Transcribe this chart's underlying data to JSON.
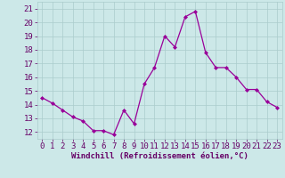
{
  "x": [
    0,
    1,
    2,
    3,
    4,
    5,
    6,
    7,
    8,
    9,
    10,
    11,
    12,
    13,
    14,
    15,
    16,
    17,
    18,
    19,
    20,
    21,
    22,
    23
  ],
  "y": [
    14.5,
    14.1,
    13.6,
    13.1,
    12.8,
    12.1,
    12.1,
    11.8,
    13.6,
    12.6,
    15.5,
    16.7,
    19.0,
    18.2,
    20.4,
    20.8,
    17.8,
    16.7,
    16.7,
    16.0,
    15.1,
    15.1,
    14.2,
    13.8
  ],
  "line_color": "#990099",
  "marker": "D",
  "marker_size": 2.0,
  "bg_color": "#cce8e8",
  "grid_color": "#aacccc",
  "xlabel": "Windchill (Refroidissement éolien,°C)",
  "xlabel_color": "#660066",
  "tick_color": "#660066",
  "ylim": [
    11.5,
    21.5
  ],
  "yticks": [
    12,
    13,
    14,
    15,
    16,
    17,
    18,
    19,
    20,
    21
  ],
  "xlim": [
    -0.5,
    23.5
  ],
  "xticks": [
    0,
    1,
    2,
    3,
    4,
    5,
    6,
    7,
    8,
    9,
    10,
    11,
    12,
    13,
    14,
    15,
    16,
    17,
    18,
    19,
    20,
    21,
    22,
    23
  ],
  "axis_label_fontsize": 6.5,
  "tick_fontsize": 6.5
}
